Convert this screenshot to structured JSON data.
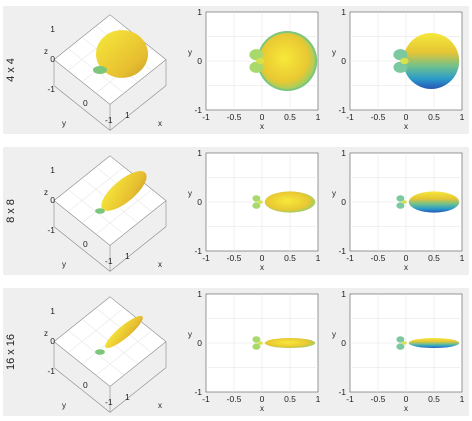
{
  "figure": {
    "rows": [
      {
        "label": "4 x 4",
        "lobe_scale": 1.0
      },
      {
        "label": "8 x 8",
        "lobe_scale": 0.55
      },
      {
        "label": "16 x 16",
        "lobe_scale": 0.3
      }
    ]
  },
  "chart_data": [
    {
      "type": "surface3d",
      "row": "4 x 4",
      "view": "isometric",
      "axes": {
        "xlabel": "x",
        "ylabel": "y",
        "zlabel": "z",
        "xticks": [
          "-1",
          "0",
          "1"
        ],
        "yticks": [
          "0"
        ],
        "zticks": [
          "1",
          "0",
          "-1"
        ]
      },
      "grid": true
    },
    {
      "type": "surface2d",
      "row": "4 x 4",
      "projection": "xy",
      "xlabel": "x",
      "ylabel": "y",
      "xlim": [
        -1,
        1
      ],
      "ylim": [
        -1,
        1
      ],
      "xticks": [
        -1,
        -0.5,
        0,
        0.5,
        1
      ],
      "yticks": [
        1,
        0,
        -1
      ],
      "xtick_labels": [
        "-1",
        "-0.5",
        "0",
        "0.5",
        "1"
      ],
      "ytick_labels": [
        "1",
        "0",
        "-1"
      ],
      "main_lobe_center": 0.45,
      "main_lobe_halfwidth": 0.5,
      "colormap": "yellow-green",
      "grid": true
    },
    {
      "type": "surface2d",
      "row": "4 x 4",
      "projection": "xy-side",
      "xlabel": "x",
      "ylabel": "y",
      "xlim": [
        -1,
        1
      ],
      "ylim": [
        -1,
        1
      ],
      "xticks": [
        -1,
        -0.5,
        0,
        0.5,
        1
      ],
      "yticks": [
        1,
        0,
        -1
      ],
      "xtick_labels": [
        "-1",
        "-0.5",
        "0",
        "0.5",
        "1"
      ],
      "ytick_labels": [
        "1",
        "0",
        "-1"
      ],
      "main_lobe_center": 0.45,
      "main_lobe_halfwidth": 0.5,
      "colormap": "parula-vertical",
      "grid": true
    },
    {
      "type": "surface3d",
      "row": "8 x 8",
      "view": "isometric",
      "axes": {
        "xlabel": "x",
        "ylabel": "y",
        "zlabel": "z",
        "xticks": [
          "-1",
          "0",
          "1"
        ],
        "yticks": [
          "0"
        ],
        "zticks": [
          "1",
          "0",
          "-1"
        ]
      },
      "grid": true
    },
    {
      "type": "surface2d",
      "row": "8 x 8",
      "projection": "xy",
      "xlabel": "x",
      "ylabel": "y",
      "xlim": [
        -1,
        1
      ],
      "ylim": [
        -1,
        1
      ],
      "xticks": [
        -1,
        -0.5,
        0,
        0.5,
        1
      ],
      "yticks": [
        1,
        0,
        -1
      ],
      "xtick_labels": [
        "-1",
        "-0.5",
        "0",
        "0.5",
        "1"
      ],
      "ytick_labels": [
        "1",
        "0",
        "-1"
      ],
      "main_lobe_center": 0.5,
      "main_lobe_halfwidth": 0.45,
      "colormap": "yellow-green",
      "grid": true
    },
    {
      "type": "surface2d",
      "row": "8 x 8",
      "projection": "xy-side",
      "xlabel": "x",
      "ylabel": "y",
      "xlim": [
        -1,
        1
      ],
      "ylim": [
        -1,
        1
      ],
      "xticks": [
        -1,
        -0.5,
        0,
        0.5,
        1
      ],
      "yticks": [
        1,
        0,
        -1
      ],
      "xtick_labels": [
        "-1",
        "-0.5",
        "0",
        "0.5",
        "1"
      ],
      "ytick_labels": [
        "1",
        "0",
        "-1"
      ],
      "main_lobe_center": 0.5,
      "main_lobe_halfwidth": 0.45,
      "colormap": "parula-vertical",
      "grid": true
    },
    {
      "type": "surface3d",
      "row": "16 x 16",
      "view": "isometric",
      "axes": {
        "xlabel": "x",
        "ylabel": "y",
        "zlabel": "z",
        "xticks": [
          "-1",
          "0",
          "1"
        ],
        "yticks": [
          "0"
        ],
        "zticks": [
          "1",
          "0",
          "-1"
        ]
      },
      "grid": true
    },
    {
      "type": "surface2d",
      "row": "16 x 16",
      "projection": "xy",
      "xlabel": "x",
      "ylabel": "y",
      "xlim": [
        -1,
        1
      ],
      "ylim": [
        -1,
        1
      ],
      "xticks": [
        -1,
        -0.5,
        0,
        0.5,
        1
      ],
      "yticks": [
        1,
        0,
        -1
      ],
      "xtick_labels": [
        "-1",
        "-0.5",
        "0",
        "0.5",
        "1"
      ],
      "ytick_labels": [
        "1",
        "0",
        "-1"
      ],
      "main_lobe_center": 0.5,
      "main_lobe_halfwidth": 0.45,
      "colormap": "yellow-green",
      "grid": true
    },
    {
      "type": "surface2d",
      "row": "16 x 16",
      "projection": "xy-side",
      "xlabel": "x",
      "ylabel": "y",
      "xlim": [
        -1,
        1
      ],
      "ylim": [
        -1,
        1
      ],
      "xticks": [
        -1,
        -0.5,
        0,
        0.5,
        1
      ],
      "yticks": [
        1,
        0,
        -1
      ],
      "xtick_labels": [
        "-1",
        "-0.5",
        "0",
        "0.5",
        "1"
      ],
      "ytick_labels": [
        "1",
        "0",
        "-1"
      ],
      "main_lobe_center": 0.5,
      "main_lobe_halfwidth": 0.45,
      "colormap": "parula-vertical",
      "grid": true
    }
  ]
}
